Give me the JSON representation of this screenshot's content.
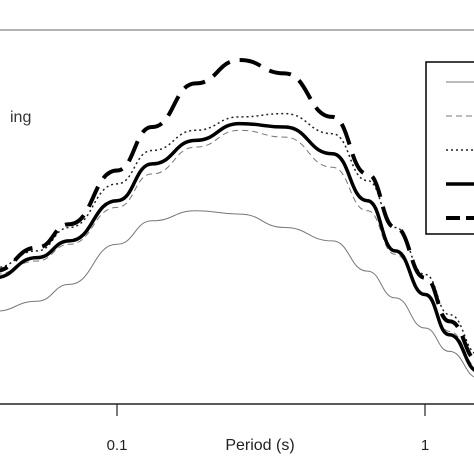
{
  "chart_data": {
    "type": "line",
    "xlabel": "Period (s)",
    "x_scale": "log",
    "xlim": [
      0.03,
      1.5
    ],
    "ylim": [
      0,
      1
    ],
    "x_ticks": [
      {
        "value": 0.1,
        "label": "0.1"
      },
      {
        "value": 1,
        "label": "1"
      }
    ],
    "annotation": "ing",
    "legend": {
      "position": "top-right",
      "entry_count": 5
    },
    "series": [
      {
        "style": "thin-solid",
        "color": "#777777",
        "x": [
          0.03,
          0.04,
          0.055,
          0.07,
          0.1,
          0.13,
          0.18,
          0.25,
          0.35,
          0.5,
          0.65,
          0.8,
          1.0,
          1.2,
          1.5
        ],
        "y": [
          0.25,
          0.25,
          0.28,
          0.33,
          0.45,
          0.52,
          0.55,
          0.54,
          0.5,
          0.46,
          0.37,
          0.29,
          0.2,
          0.13,
          0.05
        ]
      },
      {
        "style": "thin-dashed",
        "color": "#777777",
        "x": [
          0.03,
          0.04,
          0.055,
          0.07,
          0.1,
          0.13,
          0.18,
          0.25,
          0.35,
          0.5,
          0.65,
          0.8,
          1.0,
          1.2,
          1.5
        ],
        "y": [
          0.35,
          0.36,
          0.4,
          0.45,
          0.56,
          0.66,
          0.74,
          0.79,
          0.77,
          0.68,
          0.55,
          0.42,
          0.3,
          0.19,
          0.08
        ]
      },
      {
        "style": "dotted",
        "color": "#222222",
        "x": [
          0.03,
          0.04,
          0.055,
          0.07,
          0.1,
          0.13,
          0.18,
          0.25,
          0.35,
          0.5,
          0.65,
          0.8,
          1.0,
          1.2,
          1.5
        ],
        "y": [
          0.36,
          0.38,
          0.43,
          0.5,
          0.63,
          0.73,
          0.79,
          0.83,
          0.84,
          0.78,
          0.64,
          0.5,
          0.36,
          0.24,
          0.12
        ]
      },
      {
        "style": "thick-solid",
        "color": "#000000",
        "x": [
          0.03,
          0.04,
          0.055,
          0.07,
          0.1,
          0.13,
          0.18,
          0.25,
          0.35,
          0.5,
          0.65,
          0.8,
          1.0,
          1.2,
          1.5
        ],
        "y": [
          0.33,
          0.35,
          0.41,
          0.46,
          0.58,
          0.69,
          0.76,
          0.81,
          0.8,
          0.72,
          0.58,
          0.43,
          0.3,
          0.18,
          0.07
        ]
      },
      {
        "style": "thick-dashed",
        "color": "#000000",
        "x": [
          0.03,
          0.04,
          0.055,
          0.07,
          0.1,
          0.13,
          0.18,
          0.25,
          0.35,
          0.5,
          0.65,
          0.8,
          1.0,
          1.2,
          1.5
        ],
        "y": [
          0.34,
          0.37,
          0.44,
          0.51,
          0.67,
          0.8,
          0.93,
          1.0,
          0.96,
          0.83,
          0.66,
          0.5,
          0.35,
          0.22,
          0.1
        ]
      }
    ]
  }
}
